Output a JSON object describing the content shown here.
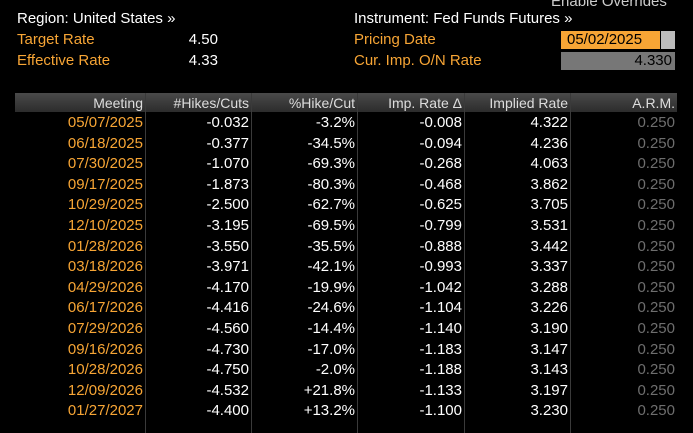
{
  "header": {
    "overrides": "Enable Overrides",
    "region": "Region: United States »",
    "instrument": "Instrument: Fed Funds Futures »",
    "fields": [
      {
        "label": "Target Rate",
        "value": "4.50"
      },
      {
        "label": "Effective Rate",
        "value": "4.33"
      }
    ],
    "pricing_date": {
      "label": "Pricing Date",
      "value": "05/02/2025"
    },
    "cur_rate": {
      "label": "Cur. Imp. O/N Rate",
      "value": "4.330"
    }
  },
  "table": {
    "columns": [
      "Meeting",
      "#Hikes/Cuts",
      "%Hike/Cut",
      "Imp. Rate Δ",
      "Implied Rate",
      "A.R.M."
    ],
    "rows": [
      [
        "05/07/2025",
        "-0.032",
        "-3.2%",
        "-0.008",
        "4.322",
        "0.250"
      ],
      [
        "06/18/2025",
        "-0.377",
        "-34.5%",
        "-0.094",
        "4.236",
        "0.250"
      ],
      [
        "07/30/2025",
        "-1.070",
        "-69.3%",
        "-0.268",
        "4.063",
        "0.250"
      ],
      [
        "09/17/2025",
        "-1.873",
        "-80.3%",
        "-0.468",
        "3.862",
        "0.250"
      ],
      [
        "10/29/2025",
        "-2.500",
        "-62.7%",
        "-0.625",
        "3.705",
        "0.250"
      ],
      [
        "12/10/2025",
        "-3.195",
        "-69.5%",
        "-0.799",
        "3.531",
        "0.250"
      ],
      [
        "01/28/2026",
        "-3.550",
        "-35.5%",
        "-0.888",
        "3.442",
        "0.250"
      ],
      [
        "03/18/2026",
        "-3.971",
        "-42.1%",
        "-0.993",
        "3.337",
        "0.250"
      ],
      [
        "04/29/2026",
        "-4.170",
        "-19.9%",
        "-1.042",
        "3.288",
        "0.250"
      ],
      [
        "06/17/2026",
        "-4.416",
        "-24.6%",
        "-1.104",
        "3.226",
        "0.250"
      ],
      [
        "07/29/2026",
        "-4.560",
        "-14.4%",
        "-1.140",
        "3.190",
        "0.250"
      ],
      [
        "09/16/2026",
        "-4.730",
        "-17.0%",
        "-1.183",
        "3.147",
        "0.250"
      ],
      [
        "10/28/2026",
        "-4.750",
        "-2.0%",
        "-1.188",
        "3.143",
        "0.250"
      ],
      [
        "12/09/2026",
        "-4.532",
        "+21.8%",
        "-1.133",
        "3.197",
        "0.250"
      ],
      [
        "01/27/2027",
        "-4.400",
        "+13.2%",
        "-1.100",
        "3.230",
        "0.250"
      ]
    ]
  }
}
